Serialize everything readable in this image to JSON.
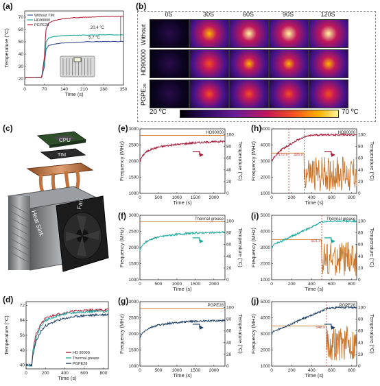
{
  "panels": {
    "a": "(a)",
    "b": "(b)",
    "c": "(c)",
    "d": "(d)",
    "e": "(e)",
    "f": "(f)",
    "g": "(g)",
    "h": "(h)",
    "i": "(i)",
    "j": "(j)"
  },
  "thermal_images": {
    "times": [
      "0S",
      "30S",
      "60S",
      "90S",
      "120S"
    ],
    "rows": [
      "Without",
      "HD90000",
      "PGPE28"
    ],
    "rows_display": [
      "Without",
      "HD90000",
      "PGPE₂₈"
    ],
    "colorbar_min": "20 ºC",
    "colorbar_max": "70 ºC"
  },
  "exploded_view": {
    "cpu": "CPU",
    "tim": "TIM",
    "heat_sink": "Heat Sink",
    "fan": "Fan"
  },
  "chart_data": [
    {
      "id": "a",
      "type": "line",
      "xlabel": "Time (s)",
      "ylabel": "Temperature (°C)",
      "xlim": [
        0,
        350
      ],
      "ylim": [
        15,
        75
      ],
      "xticks": [
        0,
        70,
        140,
        210,
        280,
        350
      ],
      "yticks": [
        20,
        30,
        40,
        50,
        60,
        70
      ],
      "legend_position": "top-left",
      "series": [
        {
          "name": "Without TIM",
          "color": "#3a4f8a",
          "x": [
            0,
            60,
            70,
            75,
            85,
            100,
            130,
            170,
            220,
            280,
            350
          ],
          "y": [
            21,
            21,
            30,
            44,
            47,
            48,
            49,
            49.5,
            50,
            50.2,
            50.3
          ]
        },
        {
          "name": "HD90000",
          "color": "#1aa89a",
          "x": [
            0,
            60,
            70,
            75,
            85,
            100,
            130,
            170,
            220,
            280,
            350
          ],
          "y": [
            21,
            21,
            33,
            50,
            53,
            54,
            55,
            55.3,
            55.5,
            55.6,
            55.6
          ]
        },
        {
          "name": "PGPE28",
          "color": "#b0243c",
          "x": [
            0,
            60,
            70,
            75,
            85,
            100,
            130,
            170,
            220,
            280,
            350
          ],
          "y": [
            21,
            21,
            38,
            60,
            65,
            67,
            68.5,
            69.5,
            70,
            70.5,
            70.7
          ]
        }
      ],
      "annotations": [
        "20.4 °C",
        "5.7 °C"
      ]
    },
    {
      "id": "d",
      "type": "line",
      "xlabel": "Time (s)",
      "ylabel": "Temperature (°C)",
      "xlim": [
        0,
        850
      ],
      "ylim": [
        38,
        74
      ],
      "xticks": [
        0,
        200,
        400,
        600,
        800
      ],
      "yticks": [
        40,
        48,
        56,
        64,
        72
      ],
      "legend_position": "bottom-right",
      "series": [
        {
          "name": "HD 90000",
          "color": "#b0243c",
          "x": [
            0,
            60,
            70,
            100,
            150,
            200,
            300,
            400,
            500,
            600,
            700,
            800,
            850
          ],
          "y": [
            40,
            40,
            48,
            56,
            62,
            65,
            67,
            68,
            69,
            69.3,
            69.5,
            69.6,
            69.7
          ]
        },
        {
          "name": "Thermal grease",
          "color": "#2aa89a",
          "x": [
            0,
            60,
            70,
            100,
            150,
            200,
            300,
            400,
            500,
            600,
            700,
            800,
            850
          ],
          "y": [
            40,
            40,
            47,
            54,
            61,
            64,
            66,
            67.5,
            68,
            68.5,
            68.7,
            68.8,
            69
          ]
        },
        {
          "name": "PGPE28",
          "color": "#1d3f63",
          "x": [
            0,
            60,
            70,
            100,
            150,
            200,
            300,
            400,
            500,
            600,
            700,
            800,
            850
          ],
          "y": [
            40,
            40,
            45,
            52,
            58,
            61,
            63.5,
            65,
            66,
            66.5,
            66.8,
            67,
            67.1
          ]
        }
      ]
    },
    {
      "id": "e",
      "type": "line",
      "title_in_plot": "HD90000",
      "xlabel": "Time (s)",
      "ylabel": "Frequency (MHz)",
      "ylabel_right": "Temperature (°C)",
      "xlim": [
        0,
        2300
      ],
      "ylim": [
        1000,
        3000
      ],
      "ylim_right": [
        0,
        110
      ],
      "xticks": [
        0,
        500,
        1000,
        1500,
        2000
      ],
      "yticks": [
        1000,
        1500,
        2000,
        2500,
        3000
      ],
      "yticks_right": [
        0,
        20,
        40,
        60,
        80,
        100
      ],
      "series": [
        {
          "name": "Temperature",
          "color": "#a01c3a",
          "x": [
            0,
            50,
            150,
            300,
            500,
            800,
            1100,
            1400,
            1700,
            2000,
            2300
          ],
          "y": [
            55,
            62,
            70,
            75,
            79,
            82,
            84,
            86,
            87,
            88,
            89
          ]
        },
        {
          "name": "Frequency",
          "color": "#c8752a",
          "x": [
            0,
            2300
          ],
          "y": [
            2800,
            2800
          ]
        }
      ]
    },
    {
      "id": "f",
      "type": "line",
      "title_in_plot": "Thermal grease",
      "xlabel": "Time (s)",
      "ylabel": "Frequency (MHz)",
      "ylabel_right": "Temperature (°C)",
      "xlim": [
        0,
        2300
      ],
      "ylim": [
        1000,
        3000
      ],
      "ylim_right": [
        0,
        110
      ],
      "xticks": [
        0,
        500,
        1000,
        1500,
        2000
      ],
      "yticks": [
        1000,
        1500,
        2000,
        2500,
        3000
      ],
      "yticks_right": [
        0,
        20,
        40,
        60,
        80,
        100
      ],
      "series": [
        {
          "name": "Temperature",
          "color": "#1aa89a",
          "x": [
            0,
            50,
            150,
            300,
            500,
            800,
            1100,
            1400,
            1700,
            2000,
            2300
          ],
          "y": [
            50,
            57,
            64,
            69,
            73,
            76,
            78,
            79.5,
            80,
            80.5,
            81
          ]
        },
        {
          "name": "Frequency",
          "color": "#c8752a",
          "x": [
            0,
            2300
          ],
          "y": [
            2800,
            2800
          ]
        }
      ]
    },
    {
      "id": "g",
      "type": "line",
      "title_in_plot": "PGPE28",
      "xlabel": "Time (s)",
      "ylabel": "Frequency (MHz)",
      "ylabel_right": "Temperature (°C)",
      "xlim": [
        0,
        2300
      ],
      "ylim": [
        1000,
        3000
      ],
      "ylim_right": [
        0,
        110
      ],
      "xticks": [
        0,
        500,
        1000,
        1500,
        2000
      ],
      "yticks": [
        1000,
        1500,
        2000,
        2500,
        3000
      ],
      "yticks_right": [
        0,
        20,
        40,
        60,
        80,
        100
      ],
      "series": [
        {
          "name": "Temperature",
          "color": "#1d3f63",
          "x": [
            0,
            50,
            150,
            300,
            500,
            800,
            1100,
            1400,
            1700,
            2000,
            2300
          ],
          "y": [
            48,
            55,
            61,
            66,
            70,
            73,
            75,
            76.5,
            77,
            77.5,
            78
          ]
        },
        {
          "name": "Frequency",
          "color": "#c8752a",
          "x": [
            0,
            2300
          ],
          "y": [
            2800,
            2800
          ]
        }
      ]
    },
    {
      "id": "h",
      "type": "line",
      "title_in_plot": "HD90000",
      "xlabel": "Time (s)",
      "ylabel": "Frequency (MHz)",
      "ylabel_right": "Temperature (°C)",
      "xlim": [
        0,
        850
      ],
      "ylim": [
        1000,
        5000
      ],
      "ylim_right": [
        0,
        110
      ],
      "xticks": [
        0,
        200,
        400,
        600,
        800
      ],
      "yticks": [
        1000,
        2000,
        3000,
        4000,
        5000
      ],
      "yticks_right": [
        0,
        20,
        40,
        60,
        80,
        100
      ],
      "markers": [
        172,
        325
      ],
      "marker_labels": [
        "172 s",
        "325 s"
      ],
      "series": [
        {
          "name": "Temperature",
          "color": "#a01c3a",
          "x": [
            0,
            20,
            60,
            100,
            172,
            250,
            325,
            400,
            500,
            600,
            700,
            850
          ],
          "y": [
            55,
            60,
            68,
            75,
            82,
            90,
            96,
            99,
            100,
            100,
            100,
            100
          ]
        },
        {
          "name": "Frequency",
          "color": "#c8752a",
          "x": [
            0,
            172,
            172,
            325,
            325,
            850
          ],
          "y": [
            3500,
            3500,
            3500,
            3500,
            2200,
            2200
          ]
        }
      ]
    },
    {
      "id": "i",
      "type": "line",
      "title_in_plot": "Thermal grease",
      "xlabel": "Time (s)",
      "ylabel": "Frequency (MHz)",
      "ylabel_right": "Temperature (°C)",
      "xlim": [
        0,
        850
      ],
      "ylim": [
        1000,
        5000
      ],
      "ylim_right": [
        0,
        110
      ],
      "xticks": [
        0,
        200,
        400,
        600,
        800
      ],
      "yticks": [
        1000,
        2000,
        3000,
        4000,
        5000
      ],
      "yticks_right": [
        0,
        20,
        40,
        60,
        80,
        100
      ],
      "markers": [
        501
      ],
      "marker_labels": [
        "501 s"
      ],
      "series": [
        {
          "name": "Temperature",
          "color": "#1aa89a",
          "x": [
            0,
            20,
            100,
            200,
            300,
            400,
            501,
            600,
            700,
            850
          ],
          "y": [
            55,
            60,
            66,
            74,
            82,
            90,
            99,
            100,
            100,
            100
          ]
        },
        {
          "name": "Frequency",
          "color": "#c8752a",
          "x": [
            0,
            501,
            501,
            850
          ],
          "y": [
            3500,
            3500,
            2300,
            2300
          ]
        }
      ]
    },
    {
      "id": "j",
      "type": "line",
      "title_in_plot": "PGPE28",
      "xlabel": "Time (s)",
      "ylabel": "Frequency (MHz)",
      "ylabel_right": "Temperature (°C)",
      "xlim": [
        0,
        850
      ],
      "ylim": [
        1000,
        5000
      ],
      "ylim_right": [
        0,
        110
      ],
      "xticks": [
        0,
        200,
        400,
        600,
        800
      ],
      "yticks": [
        1000,
        2000,
        3000,
        4000,
        5000
      ],
      "yticks_right": [
        0,
        20,
        40,
        60,
        80,
        100
      ],
      "markers": [
        548
      ],
      "marker_labels": [
        "548 s"
      ],
      "series": [
        {
          "name": "Temperature",
          "color": "#1d3f63",
          "x": [
            0,
            20,
            100,
            200,
            300,
            400,
            500,
            548,
            650,
            750,
            850
          ],
          "y": [
            55,
            60,
            65,
            72,
            80,
            87,
            94,
            98,
            100,
            100,
            100
          ]
        },
        {
          "name": "Frequency",
          "color": "#c8752a",
          "x": [
            0,
            548,
            548,
            850
          ],
          "y": [
            3500,
            3500,
            2400,
            2400
          ]
        }
      ]
    }
  ]
}
